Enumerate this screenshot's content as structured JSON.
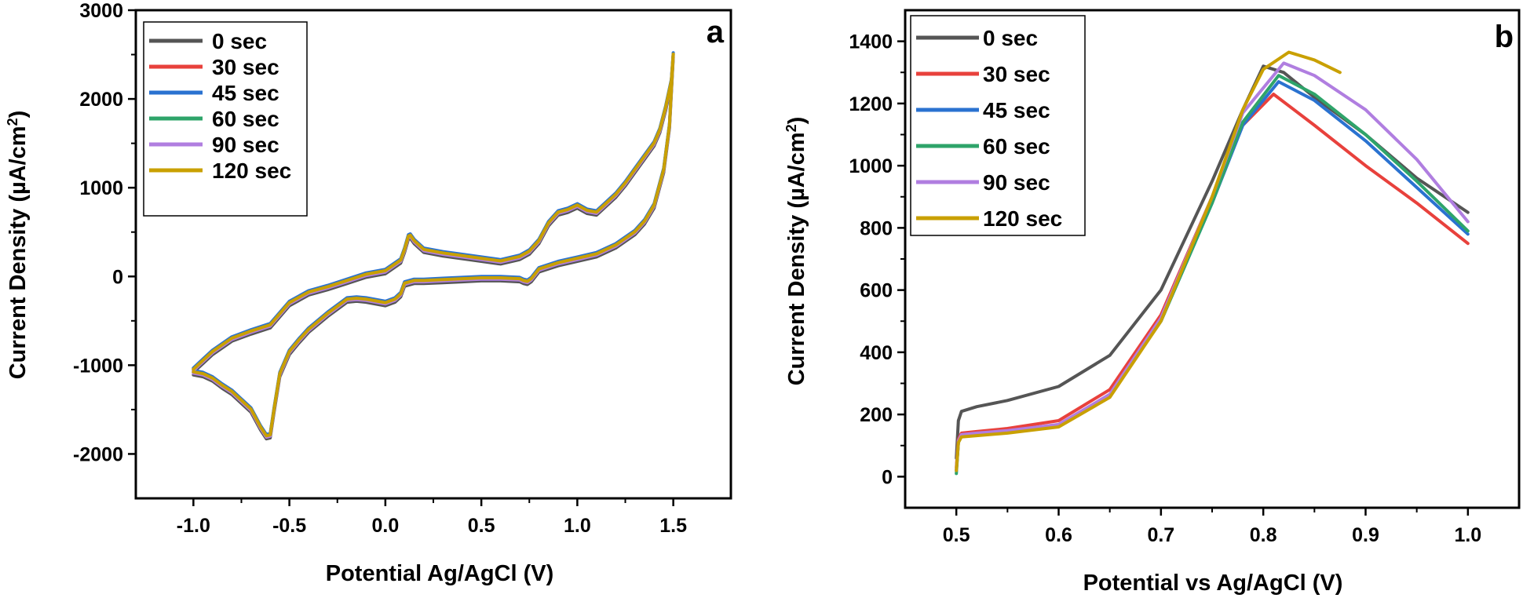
{
  "chart_data": [
    {
      "type": "line",
      "panel_label": "a",
      "xlabel": "Potential Ag/AgCl (V)",
      "ylabel_prefix": "Current Density (",
      "ylabel_unit": "µA/cm",
      "ylabel_sup": "2",
      "ylabel_suffix": ")",
      "xlim": [
        -1.3,
        1.8
      ],
      "ylim": [
        -2500,
        3000
      ],
      "x_ticks": [
        -1.0,
        -0.5,
        0.0,
        0.5,
        1.0,
        1.5
      ],
      "x_tick_labels": [
        "-1.0",
        "-0.5",
        "0.0",
        "0.5",
        "1.0",
        "1.5"
      ],
      "y_ticks": [
        -2000,
        -1000,
        0,
        1000,
        2000,
        3000
      ],
      "y_tick_labels": [
        "-2000",
        "-1000",
        "0",
        "1000",
        "2000",
        "3000"
      ],
      "legend_position": "top-left",
      "base_curve": {
        "x": [
          -1.0,
          -0.95,
          -0.9,
          -0.85,
          -0.8,
          -0.75,
          -0.7,
          -0.65,
          -0.62,
          -0.6,
          -0.58,
          -0.55,
          -0.5,
          -0.45,
          -0.4,
          -0.3,
          -0.2,
          -0.15,
          -0.1,
          0.0,
          0.05,
          0.08,
          0.1,
          0.15,
          0.2,
          0.3,
          0.4,
          0.5,
          0.6,
          0.7,
          0.72,
          0.74,
          0.76,
          0.8,
          0.9,
          1.0,
          1.1,
          1.2,
          1.3,
          1.35,
          1.4,
          1.45,
          1.48,
          1.5,
          1.49,
          1.46,
          1.43,
          1.4,
          1.35,
          1.3,
          1.25,
          1.2,
          1.1,
          1.05,
          1.0,
          0.95,
          0.9,
          0.85,
          0.8,
          0.75,
          0.7,
          0.6,
          0.5,
          0.4,
          0.3,
          0.2,
          0.15,
          0.13,
          0.12,
          0.1,
          0.08,
          0.0,
          -0.1,
          -0.2,
          -0.3,
          -0.4,
          -0.5,
          -0.6,
          -0.7,
          -0.8,
          -0.9,
          -0.95,
          -1.0
        ],
        "y": [
          -1080,
          -1100,
          -1150,
          -1230,
          -1300,
          -1400,
          -1500,
          -1700,
          -1800,
          -1790,
          -1500,
          -1100,
          -850,
          -720,
          -600,
          -420,
          -260,
          -250,
          -260,
          -300,
          -260,
          -200,
          -80,
          -50,
          -50,
          -40,
          -30,
          -20,
          -20,
          -30,
          -50,
          -60,
          -30,
          80,
          150,
          200,
          250,
          350,
          500,
          620,
          800,
          1200,
          1700,
          2500,
          2200,
          1900,
          1650,
          1500,
          1350,
          1200,
          1050,
          920,
          720,
          740,
          800,
          750,
          720,
          600,
          400,
          280,
          220,
          170,
          200,
          230,
          260,
          300,
          400,
          460,
          450,
          300,
          180,
          60,
          20,
          -50,
          -120,
          -180,
          -300,
          -550,
          -620,
          -700,
          -850,
          -950,
          -1050
        ]
      },
      "series": [
        {
          "name": "0 sec",
          "color": "#555555",
          "dy": -30
        },
        {
          "name": "30 sec",
          "color": "#e8413c",
          "dy": 10
        },
        {
          "name": "45 sec",
          "color": "#2a72d0",
          "dy": 20
        },
        {
          "name": "60 sec",
          "color": "#2ea46a",
          "dy": 0
        },
        {
          "name": "90 sec",
          "color": "#b07ee0",
          "dy": -10
        },
        {
          "name": "120 sec",
          "color": "#c9a000",
          "dy": 5
        }
      ]
    },
    {
      "type": "line",
      "panel_label": "b",
      "xlabel": "Potential vs Ag/AgCl (V)",
      "ylabel_prefix": "Current Density (",
      "ylabel_unit": "µA/cm",
      "ylabel_sup": "2",
      "ylabel_suffix": ")",
      "xlim": [
        0.45,
        1.05
      ],
      "ylim": [
        -100,
        1500
      ],
      "x_ticks": [
        0.5,
        0.6,
        0.7,
        0.8,
        0.9,
        1.0
      ],
      "x_tick_labels": [
        "0.5",
        "0.6",
        "0.7",
        "0.8",
        "0.9",
        "1.0"
      ],
      "y_ticks": [
        0,
        200,
        400,
        600,
        800,
        1000,
        1200,
        1400
      ],
      "y_tick_labels": [
        "0",
        "200",
        "400",
        "600",
        "800",
        "1000",
        "1200",
        "1400"
      ],
      "legend_position": "top-left",
      "series": [
        {
          "name": "0 sec",
          "color": "#555555",
          "x": [
            0.5,
            0.502,
            0.505,
            0.52,
            0.55,
            0.6,
            0.65,
            0.7,
            0.75,
            0.78,
            0.8,
            0.82,
            0.85,
            0.9,
            0.95,
            1.0
          ],
          "y": [
            60,
            180,
            210,
            225,
            245,
            290,
            390,
            600,
            950,
            1180,
            1320,
            1300,
            1220,
            1100,
            960,
            850
          ]
        },
        {
          "name": "30 sec",
          "color": "#e8413c",
          "x": [
            0.5,
            0.502,
            0.505,
            0.52,
            0.55,
            0.6,
            0.65,
            0.7,
            0.75,
            0.78,
            0.81,
            0.85,
            0.9,
            0.95,
            1.0
          ],
          "y": [
            30,
            120,
            140,
            145,
            155,
            180,
            280,
            520,
            900,
            1130,
            1230,
            1130,
            1000,
            880,
            750
          ]
        },
        {
          "name": "45 sec",
          "color": "#2a72d0",
          "x": [
            0.5,
            0.502,
            0.505,
            0.52,
            0.55,
            0.6,
            0.65,
            0.7,
            0.75,
            0.78,
            0.815,
            0.85,
            0.9,
            0.95,
            1.0
          ],
          "y": [
            20,
            110,
            130,
            135,
            145,
            165,
            260,
            500,
            880,
            1130,
            1270,
            1210,
            1080,
            930,
            780
          ]
        },
        {
          "name": "60 sec",
          "color": "#2ea46a",
          "x": [
            0.5,
            0.502,
            0.505,
            0.52,
            0.55,
            0.6,
            0.65,
            0.7,
            0.75,
            0.78,
            0.815,
            0.85,
            0.9,
            0.95,
            1.0
          ],
          "y": [
            10,
            110,
            130,
            135,
            145,
            165,
            260,
            500,
            880,
            1140,
            1290,
            1230,
            1100,
            950,
            790
          ]
        },
        {
          "name": "90 sec",
          "color": "#b07ee0",
          "x": [
            0.5,
            0.502,
            0.505,
            0.52,
            0.55,
            0.6,
            0.65,
            0.7,
            0.75,
            0.78,
            0.82,
            0.85,
            0.9,
            0.95,
            1.0
          ],
          "y": [
            20,
            115,
            135,
            140,
            148,
            168,
            265,
            510,
            900,
            1170,
            1330,
            1290,
            1180,
            1020,
            820
          ]
        },
        {
          "name": "120 sec",
          "color": "#c9a000",
          "x": [
            0.5,
            0.502,
            0.505,
            0.52,
            0.55,
            0.6,
            0.65,
            0.7,
            0.75,
            0.78,
            0.8,
            0.825,
            0.85,
            0.875
          ],
          "y": [
            20,
            110,
            128,
            132,
            140,
            160,
            255,
            500,
            900,
            1180,
            1310,
            1365,
            1340,
            1300
          ]
        }
      ]
    }
  ]
}
